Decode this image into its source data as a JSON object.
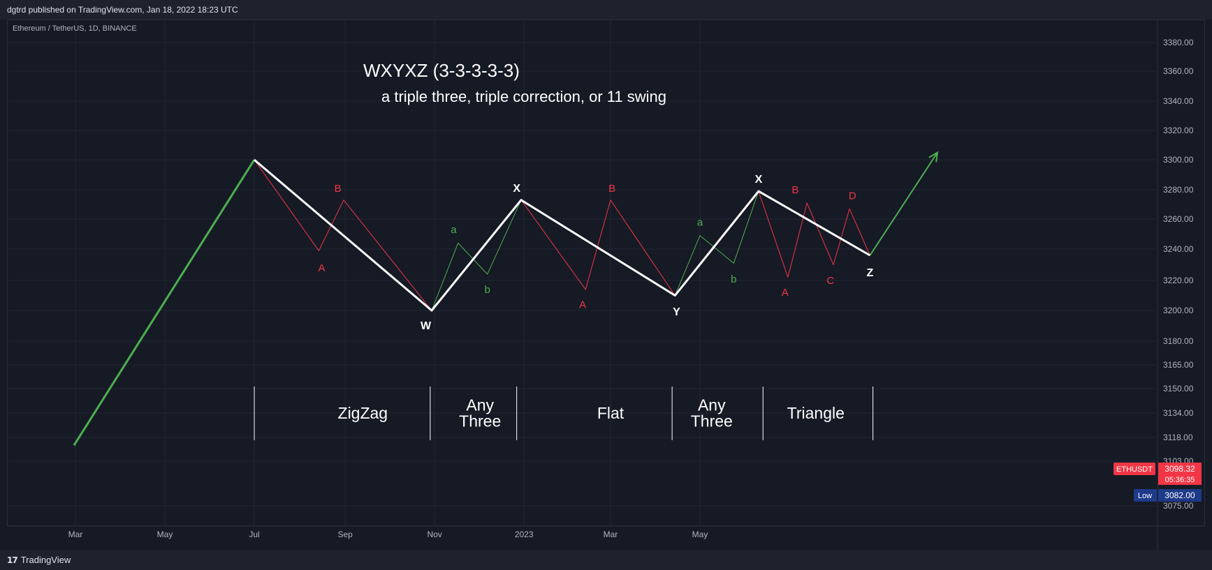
{
  "header": {
    "published": "dgtrd published on TradingView.com, Jan 18, 2022 18:23 UTC"
  },
  "symbol_line": "Ethereum / TetherUS, 1D, BINANCE",
  "footer": {
    "brand": "TradingView",
    "logo_mark": "17"
  },
  "colors": {
    "background": "#161a25",
    "grid": "#232733",
    "green": "#4caf50",
    "red": "#f23645",
    "white": "#ffffff",
    "price_tag": "#f23645",
    "low_tag": "#1e3a8a"
  },
  "chart_data": {
    "type": "line",
    "title": "WXYXZ (3-3-3-3-3)",
    "subtitle": "a triple three, triple correction, or 11 swing",
    "xlabel": "",
    "ylabel": "",
    "y_ticks": [
      3380,
      3360,
      3340,
      3320,
      3300,
      3280,
      3260,
      3240,
      3220,
      3200,
      3180,
      3165,
      3150,
      3134,
      3118,
      3103,
      3075
    ],
    "y_tick_labels": [
      "3380.00",
      "3360.00",
      "3340.00",
      "3320.00",
      "3300.00",
      "3280.00",
      "3260.00",
      "3240.00",
      "3220.00",
      "3200.00",
      "3180.00",
      "3165.00",
      "3150.00",
      "3134.00",
      "3118.00",
      "3103.00",
      "3075.00"
    ],
    "x_tick_labels": [
      "Mar",
      "May",
      "Jul",
      "Sep",
      "Nov",
      "2023",
      "Mar",
      "May"
    ],
    "x_tick_dates": [
      "2022-03-01",
      "2022-05-01",
      "2022-07-01",
      "2022-09-01",
      "2022-11-01",
      "2023-01-01",
      "2023-03-01",
      "2023-05-01"
    ],
    "series": [
      {
        "style": "impulse-green",
        "points": [
          [
            "2022-02-28",
            3113
          ],
          [
            "2022-07-01",
            3300
          ]
        ]
      },
      {
        "style": "structure-white",
        "points": [
          [
            "2022-07-01",
            3300
          ],
          [
            "2022-10-30",
            3200
          ],
          [
            "2022-12-30",
            3273
          ],
          [
            "2023-04-14",
            3210
          ],
          [
            "2023-06-10",
            3279
          ],
          [
            "2023-08-25",
            3236
          ]
        ]
      },
      {
        "style": "sub-red",
        "points": [
          [
            "2022-07-01",
            3300
          ],
          [
            "2022-08-14",
            3239
          ],
          [
            "2022-08-31",
            3273
          ],
          [
            "2022-10-30",
            3200
          ]
        ]
      },
      {
        "style": "sub-green",
        "points": [
          [
            "2022-10-30",
            3200
          ],
          [
            "2022-11-17",
            3244
          ],
          [
            "2022-12-07",
            3224
          ],
          [
            "2022-12-30",
            3273
          ]
        ]
      },
      {
        "style": "sub-red",
        "points": [
          [
            "2022-12-30",
            3273
          ],
          [
            "2023-02-12",
            3214
          ],
          [
            "2023-03-01",
            3273
          ],
          [
            "2023-04-14",
            3210
          ]
        ]
      },
      {
        "style": "sub-green",
        "points": [
          [
            "2023-04-14",
            3210
          ],
          [
            "2023-05-01",
            3249
          ],
          [
            "2023-05-24",
            3231
          ],
          [
            "2023-06-10",
            3279
          ]
        ]
      },
      {
        "style": "sub-red",
        "points": [
          [
            "2023-06-10",
            3279
          ],
          [
            "2023-06-30",
            3222
          ],
          [
            "2023-07-13",
            3271
          ],
          [
            "2023-07-31",
            3230
          ],
          [
            "2023-08-11",
            3267
          ],
          [
            "2023-08-25",
            3236
          ]
        ]
      },
      {
        "style": "projection-green",
        "points": [
          [
            "2023-08-25",
            3236
          ],
          [
            "2023-10-10",
            3305
          ]
        ]
      }
    ],
    "wave_labels": [
      {
        "text": "B",
        "color": "red",
        "at": [
          "2022-08-27",
          3281
        ]
      },
      {
        "text": "A",
        "color": "red",
        "at": [
          "2022-08-16",
          3228
        ]
      },
      {
        "text": "W",
        "color": "white",
        "at": [
          "2022-10-26",
          3190
        ]
      },
      {
        "text": "a",
        "color": "green",
        "at": [
          "2022-11-14",
          3253
        ]
      },
      {
        "text": "b",
        "color": "green",
        "at": [
          "2022-12-07",
          3214
        ]
      },
      {
        "text": "X",
        "color": "white",
        "at": [
          "2022-12-27",
          3281
        ]
      },
      {
        "text": "A",
        "color": "red",
        "at": [
          "2023-02-10",
          3204
        ]
      },
      {
        "text": "B",
        "color": "red",
        "at": [
          "2023-03-02",
          3281
        ]
      },
      {
        "text": "Y",
        "color": "white",
        "at": [
          "2023-04-15",
          3199
        ]
      },
      {
        "text": "a",
        "color": "green",
        "at": [
          "2023-05-01",
          3258
        ]
      },
      {
        "text": "b",
        "color": "green",
        "at": [
          "2023-05-24",
          3221
        ]
      },
      {
        "text": "X",
        "color": "white",
        "at": [
          "2023-06-10",
          3287
        ]
      },
      {
        "text": "B",
        "color": "red",
        "at": [
          "2023-07-05",
          3280
        ]
      },
      {
        "text": "A",
        "color": "red",
        "at": [
          "2023-06-28",
          3212
        ]
      },
      {
        "text": "D",
        "color": "red",
        "at": [
          "2023-08-13",
          3276
        ]
      },
      {
        "text": "C",
        "color": "red",
        "at": [
          "2023-07-29",
          3220
        ]
      },
      {
        "text": "Z",
        "color": "white",
        "at": [
          "2023-08-25",
          3225
        ]
      }
    ],
    "segment_labels": [
      {
        "lines": [
          "ZigZag"
        ],
        "center": [
          "2022-09-13",
          3134
        ]
      },
      {
        "lines": [
          "Any",
          "Three"
        ],
        "center": [
          "2022-12-02",
          3134
        ]
      },
      {
        "lines": [
          "Flat"
        ],
        "center": [
          "2023-03-01",
          3134
        ]
      },
      {
        "lines": [
          "Any",
          "Three"
        ],
        "center": [
          "2023-05-09",
          3134
        ]
      },
      {
        "lines": [
          "Triangle"
        ],
        "center": [
          "2023-07-19",
          3134
        ]
      }
    ],
    "separators": [
      "2022-07-01",
      "2022-10-29",
      "2022-12-27",
      "2023-04-12",
      "2023-06-13",
      "2023-08-27"
    ],
    "price_tag": {
      "symbol": "ETHUSDT",
      "price": "3098.32",
      "countdown": "05:36:35"
    },
    "low_tag": {
      "label": "Low",
      "price": "3082.00"
    }
  }
}
